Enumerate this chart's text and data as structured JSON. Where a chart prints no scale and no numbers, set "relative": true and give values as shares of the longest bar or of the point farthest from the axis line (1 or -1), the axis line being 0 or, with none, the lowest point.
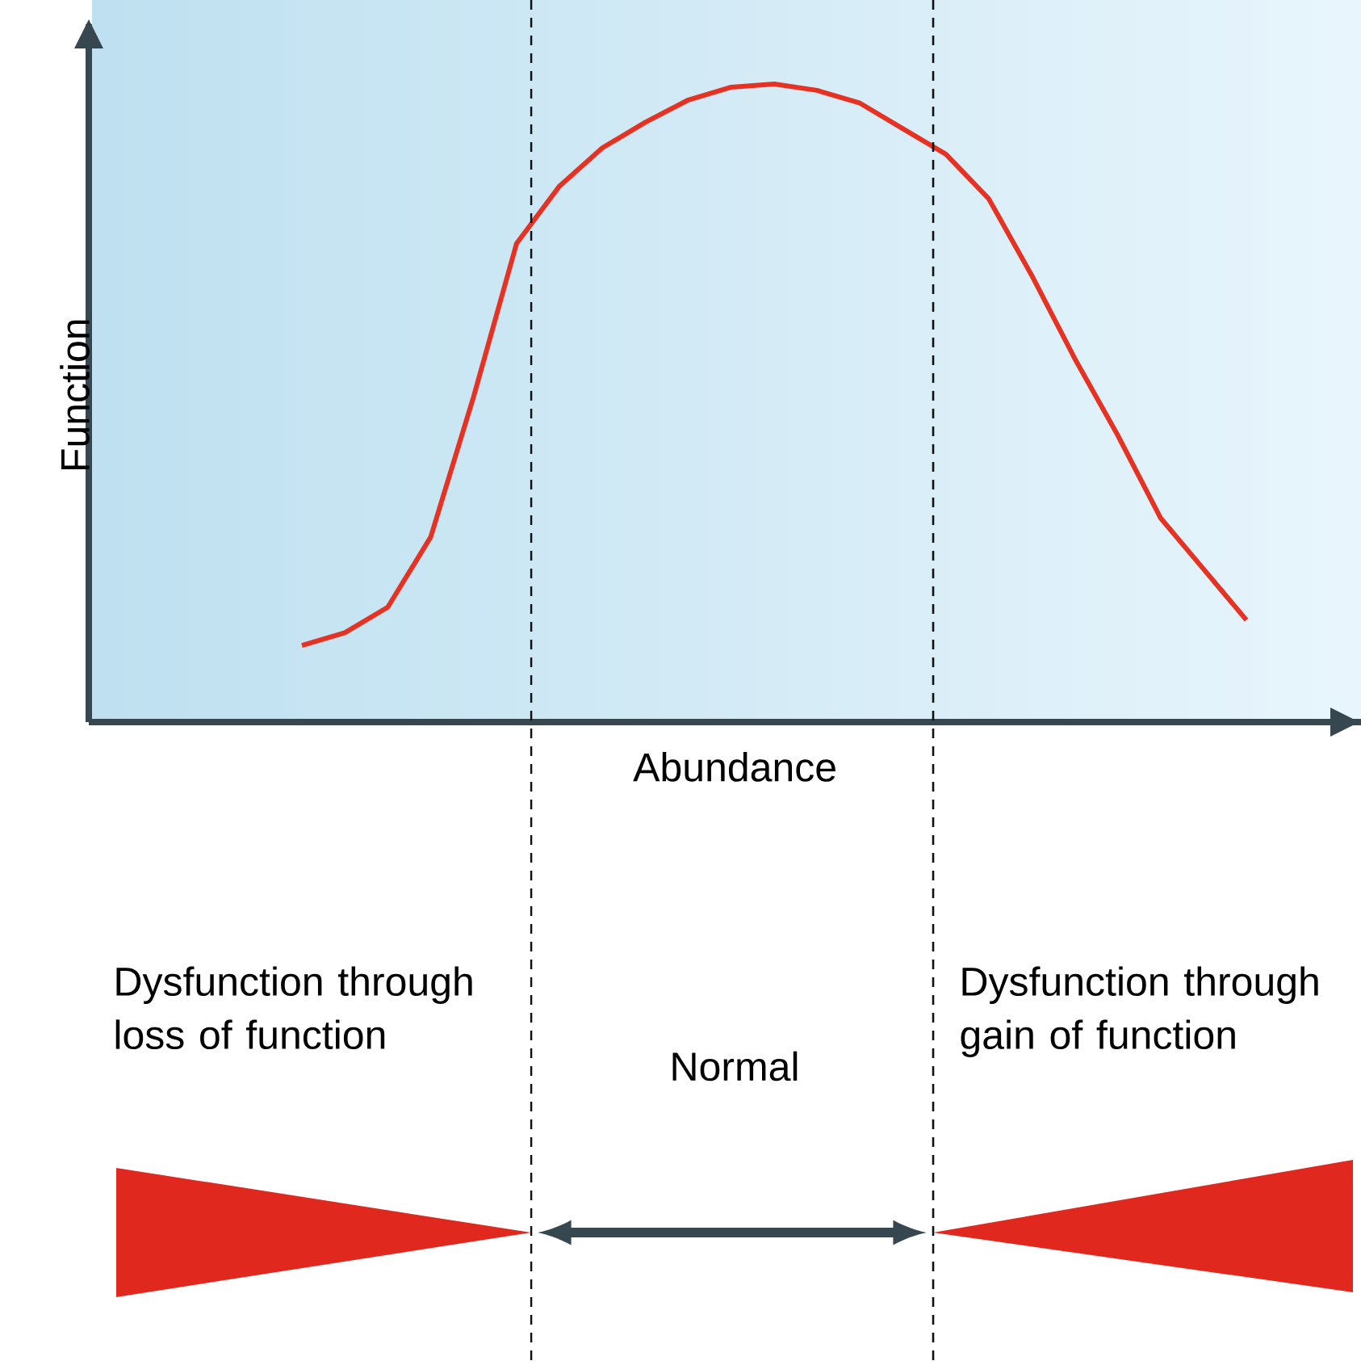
{
  "chart_data": {
    "type": "line",
    "relative": true,
    "xlabel": "Abundance",
    "ylabel": "Function",
    "categories": [
      null,
      null,
      null,
      null,
      null,
      null,
      null,
      null,
      null,
      null,
      null,
      null,
      null,
      null,
      null,
      null,
      null,
      null,
      null,
      null,
      null,
      null,
      null
    ],
    "series": [
      {
        "color": "#e53222",
        "values": [
          0.12,
          0.14,
          0.18,
          0.29,
          0.51,
          0.75,
          0.84,
          0.9,
          0.94,
          0.975,
          0.995,
          1.0,
          0.99,
          0.97,
          0.93,
          0.89,
          0.82,
          0.7,
          0.57,
          0.45,
          0.32,
          0.24,
          0.16
        ]
      }
    ],
    "annotations": [
      "Dysfunction through loss of function",
      "Normal",
      "Dysfunction through gain of function"
    ],
    "line_style": "solid"
  }
}
